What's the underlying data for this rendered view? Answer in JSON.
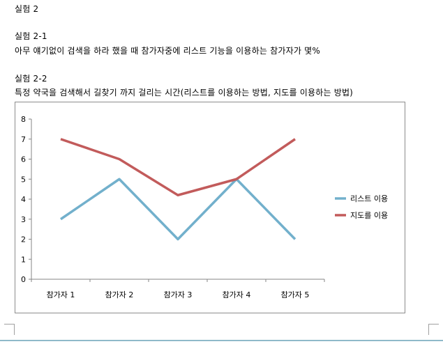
{
  "document": {
    "heading_main": "실험 2",
    "heading_2_1": "실험 2-1",
    "text_2_1": "아무 얘기없이 검색을 하라 했을 때 참가자중에 리스트 기능을 이용하는 참가자가 몇%",
    "heading_2_2": "실험 2-2",
    "text_2_2": "특정 약국을 검색해서 길찾기 까지 걸리는 시간(리스트를 이용하는 방법, 지도를 이용하는 방법)"
  },
  "chart_data": {
    "type": "line",
    "categories": [
      "참가자 1",
      "참가자 2",
      "참가자 3",
      "참가자 4",
      "참가자 5"
    ],
    "series": [
      {
        "name": "리스트 이용",
        "values": [
          3,
          5,
          2,
          5,
          2
        ],
        "color": "#72b0cc"
      },
      {
        "name": "지도를 이용",
        "values": [
          7,
          6,
          4.2,
          5,
          7
        ],
        "color": "#c25b5b"
      }
    ],
    "ylim": [
      0,
      8
    ],
    "yticks": [
      "0",
      "1",
      "2",
      "3",
      "4",
      "5",
      "6",
      "7",
      "8"
    ],
    "grid": false,
    "legend_position": "right"
  }
}
